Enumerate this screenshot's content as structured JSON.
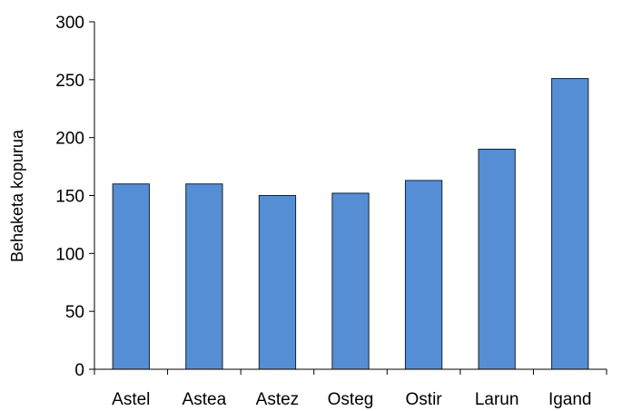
{
  "chart_data": {
    "type": "bar",
    "categories": [
      "Astel",
      "Astea",
      "Astez",
      "Osteg",
      "Ostir",
      "Larun",
      "Igand"
    ],
    "values": [
      160,
      160,
      150,
      152,
      163,
      190,
      251
    ],
    "title": "",
    "xlabel": "",
    "ylabel": "Behaketa kopurua",
    "ylim": [
      0,
      300
    ],
    "yticks": [
      0,
      50,
      100,
      150,
      200,
      250,
      300
    ],
    "bar_color": "#558ED5",
    "bar_edge_color": "#1F1F1F",
    "grid": false,
    "legend": "none"
  }
}
